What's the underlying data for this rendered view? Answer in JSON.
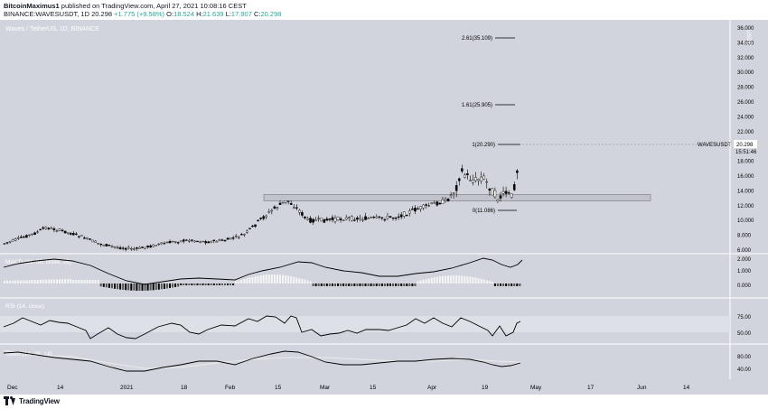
{
  "header": {
    "author": "BitcoinMaximus1",
    "published_on": "published on TradingView.com, April 27, 2021 10:08:16 CEST",
    "symbol": "BINANCE:WAVESUSDT, 1D",
    "last": "20.298",
    "change": "+1.775 (+9.58%)",
    "o_label": "O:",
    "o": "18.524",
    "h_label": "H:",
    "h": "21.639",
    "l_label": "L:",
    "l": "17.907",
    "c_label": "C:",
    "c": "20.298"
  },
  "chart": {
    "title": "Waves / TetherUS, 1D, BINANCE",
    "currency": "USDT",
    "price_ticks": [
      "36.000",
      "34.000",
      "32.000",
      "30.000",
      "28.000",
      "26.000",
      "24.000",
      "22.000",
      "20.000",
      "18.000",
      "16.000",
      "14.000",
      "12.000",
      "10.000",
      "8.000",
      "6.000"
    ],
    "price_label": "WAVESUSDT",
    "price_value": "20.298",
    "countdown": "15:51:46",
    "fib_labels": [
      "2.61(35.109)",
      "1.61(25.905)",
      "1(20.290)",
      "0(11.086)"
    ],
    "x_ticks": [
      "Dec",
      "14",
      "2021",
      "18",
      "Feb",
      "15",
      "Mar",
      "15",
      "Apr",
      "19",
      "May",
      "17",
      "Jun",
      "14"
    ],
    "macd_title": "MACD (21, 50, close, 26)",
    "macd_ticks": [
      "2.000",
      "1.000",
      "0.000"
    ],
    "rsi_title": "RSI (14, close)",
    "rsi_ticks": [
      "75.00",
      "50.00"
    ],
    "stoch_title": "Stoch (14, 28, 14)",
    "stoch_ticks": [
      "80.00",
      "40.00"
    ],
    "colors": {
      "background": "#d1d4dc",
      "candle": "#ffffff",
      "candle_outline": "#000000",
      "zone_fill": "#c0c3cb"
    }
  },
  "footer": {
    "brand": "TradingView"
  }
}
